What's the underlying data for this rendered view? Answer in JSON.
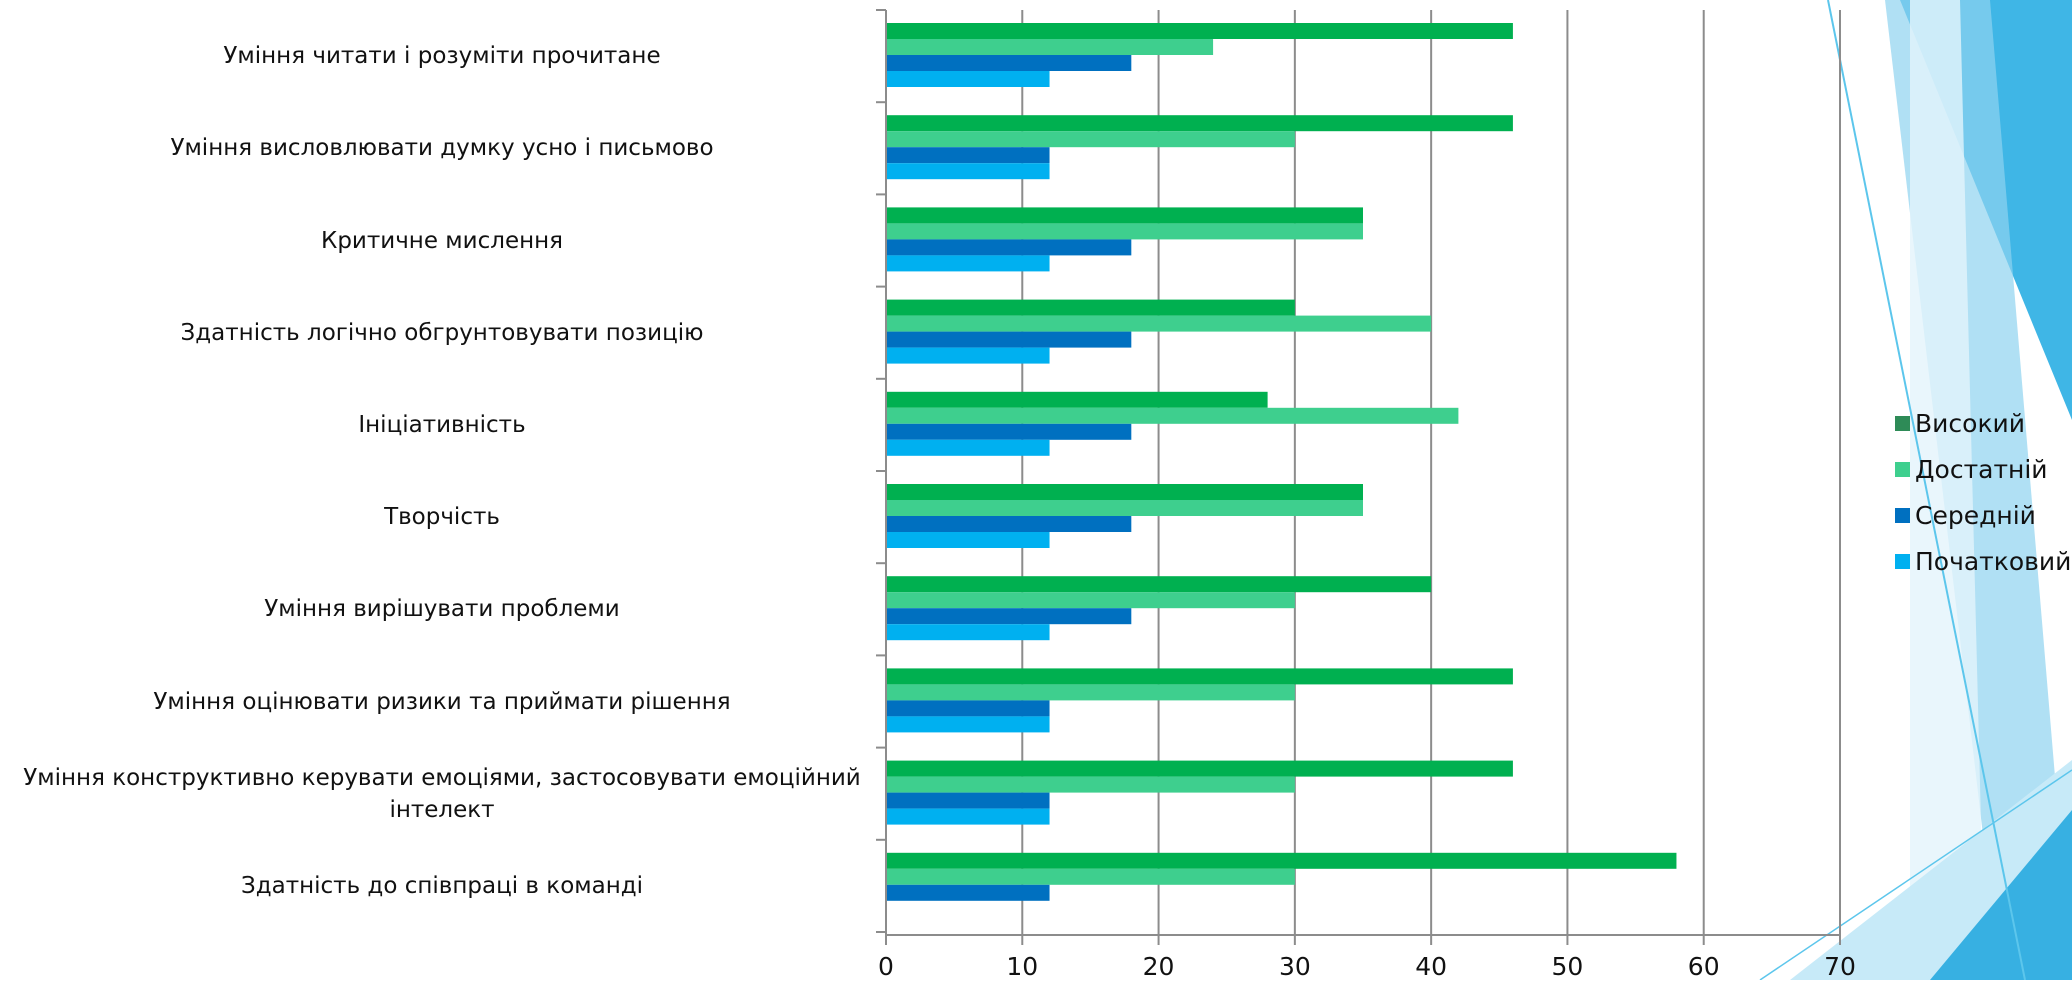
{
  "chart_data": {
    "type": "bar",
    "orientation": "horizontal",
    "categories": [
      "Уміння читати і розуміти прочитане",
      "Уміння висловлювати думку усно і письмово",
      "Критичне мислення",
      "Здатність логічно обгрунтовувати позицію",
      "Ініціативність",
      "Творчість",
      "Уміння вирішувати проблеми",
      "Уміння оцінювати ризики та приймати рішення",
      "Уміння конструктивно керувати емоціями, застосовувати емоційний\nінтелект",
      "Здатність до співпраці в команді"
    ],
    "series": [
      {
        "name": "Високий",
        "color": "#00B050",
        "legend_color": "#2E8B57",
        "values": [
          46,
          46,
          35,
          30,
          28,
          35,
          40,
          46,
          46,
          58
        ]
      },
      {
        "name": "Достатній",
        "color": "#3ECF8E",
        "legend_color": "#3ECF8E",
        "values": [
          24,
          30,
          35,
          40,
          42,
          35,
          30,
          30,
          30,
          30
        ]
      },
      {
        "name": "Середній",
        "color": "#0070C0",
        "legend_color": "#0070C0",
        "values": [
          18,
          12,
          18,
          18,
          18,
          18,
          18,
          12,
          12,
          12
        ]
      },
      {
        "name": "Початковий",
        "color": "#00B0F0",
        "legend_color": "#00B0F0",
        "values": [
          12,
          12,
          12,
          12,
          12,
          12,
          12,
          12,
          12,
          null
        ]
      }
    ],
    "xlim": [
      0,
      70
    ],
    "xticks": [
      0,
      10,
      20,
      30,
      40,
      50,
      60,
      70
    ],
    "grid": true,
    "legend_position": "right"
  },
  "decoration": {
    "colors": [
      "#3FB6E6",
      "#8ED3F0",
      "#C7EAF8",
      "#E3F4FB",
      "#1DA6DE"
    ]
  }
}
